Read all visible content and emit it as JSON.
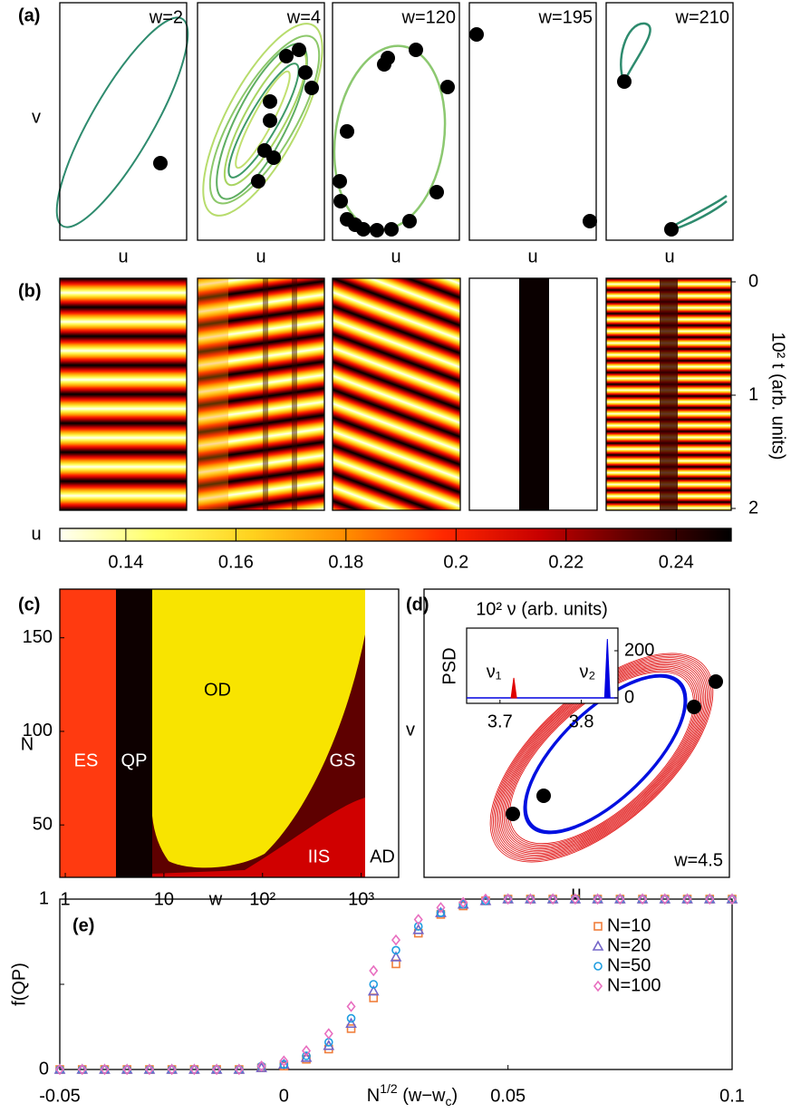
{
  "chart_data": [
    {
      "type": "phase",
      "label": "(a)",
      "titles": [
        "w=2",
        "w=4",
        "w=120",
        "w=195",
        "w=210"
      ],
      "x_label": "u",
      "y_label": "v"
    },
    {
      "type": "stripes",
      "label": "(b)",
      "y2_label": "10² t (arb. units)",
      "y2lim": [
        0,
        2
      ],
      "y2ticks": [
        0,
        1,
        2
      ],
      "colorbar": {
        "label": "u",
        "lim": [
          0.128,
          0.25
        ],
        "ticks": [
          0.14,
          0.16,
          0.18,
          0.2,
          0.22,
          0.24
        ],
        "colors": [
          "#fffff2",
          "#ffff66",
          "#ffd21e",
          "#ff8c00",
          "#ff2800",
          "#c80000",
          "#5a0000",
          "#000000"
        ]
      }
    },
    {
      "type": "regions",
      "label": "(c)",
      "x_label": "w",
      "y_label": "N",
      "log_x": true,
      "xlim": [
        0.88,
        2400
      ],
      "xticks": [
        1,
        10,
        {
          "value": 100,
          "label": "10²"
        },
        {
          "value": 1000,
          "label": "10³"
        }
      ],
      "ylim": [
        22,
        176
      ],
      "yticks": [
        50,
        100,
        150
      ],
      "regions": [
        "ES",
        "QP",
        "OD",
        "GS",
        "IIS",
        "AD"
      ]
    },
    {
      "type": "orbit",
      "label": "(d)",
      "annotation": "w=4.5",
      "x_label": "u",
      "y_label": "v",
      "inset": {
        "title": "10² ν (arb. units)",
        "y_label": "PSD",
        "xlim": [
          3.659,
          3.845
        ],
        "xticks": [
          3.7,
          3.8
        ],
        "ylim": [
          -23,
          296
        ],
        "yticks": [
          0,
          200
        ],
        "peaks": [
          {
            "name": "ν₁",
            "x": 3.717,
            "value": 85,
            "color": "#e00000"
          },
          {
            "name": "ν₂",
            "x": 3.832,
            "value": 250,
            "color": "#0000e0"
          }
        ]
      }
    },
    {
      "type": "scatter",
      "label": "(e)",
      "y_label": "f(QP)",
      "x_label": [
        "N",
        "1/2",
        " (w−w",
        "c",
        ")"
      ],
      "xlim": [
        -0.05,
        0.1
      ],
      "xticks": [
        -0.05,
        0,
        0.05,
        0.1
      ],
      "ylim": [
        0,
        1
      ],
      "yticks": [
        0,
        1
      ],
      "x": [
        -0.05,
        -0.045,
        -0.04,
        -0.035,
        -0.03,
        -0.025,
        -0.02,
        -0.015,
        -0.01,
        -0.005,
        0,
        0.005,
        0.01,
        0.015,
        0.02,
        0.025,
        0.03,
        0.035,
        0.04,
        0.045,
        0.05,
        0.055,
        0.06,
        0.065,
        0.07,
        0.075,
        0.08,
        0.085,
        0.09,
        0.095,
        0.1
      ],
      "series": [
        {
          "name": "N=10",
          "color": "#f07f3c",
          "marker": "square",
          "values": [
            0,
            0,
            0,
            0,
            0,
            0,
            0,
            0,
            0,
            0.01,
            0.02,
            0.06,
            0.12,
            0.24,
            0.42,
            0.62,
            0.8,
            0.91,
            0.96,
            0.99,
            1,
            1,
            1,
            1,
            1,
            1,
            1,
            1,
            1,
            1,
            1
          ]
        },
        {
          "name": "N=20",
          "color": "#7466c8",
          "marker": "triangle",
          "values": [
            0,
            0,
            0,
            0,
            0,
            0,
            0,
            0,
            0,
            0.01,
            0.03,
            0.07,
            0.14,
            0.27,
            0.46,
            0.66,
            0.82,
            0.92,
            0.97,
            0.99,
            1,
            1,
            1,
            1,
            1,
            1,
            1,
            1,
            1,
            1,
            1
          ]
        },
        {
          "name": "N=50",
          "color": "#1e9de0",
          "marker": "circle",
          "values": [
            0,
            0,
            0,
            0,
            0,
            0,
            0,
            0,
            0,
            0.02,
            0.03,
            0.08,
            0.16,
            0.3,
            0.5,
            0.7,
            0.84,
            0.92,
            0.97,
            0.99,
            1,
            1,
            1,
            1,
            1,
            1,
            1,
            1,
            1,
            1,
            1
          ]
        },
        {
          "name": "N=100",
          "color": "#e86fc0",
          "marker": "diamond",
          "values": [
            0,
            0,
            0,
            0,
            0,
            0,
            0,
            0,
            0,
            0.02,
            0.05,
            0.11,
            0.21,
            0.37,
            0.58,
            0.76,
            0.88,
            0.95,
            0.98,
            1,
            1,
            1,
            1,
            1,
            1,
            1,
            1,
            1,
            1,
            1,
            1
          ]
        }
      ]
    }
  ]
}
